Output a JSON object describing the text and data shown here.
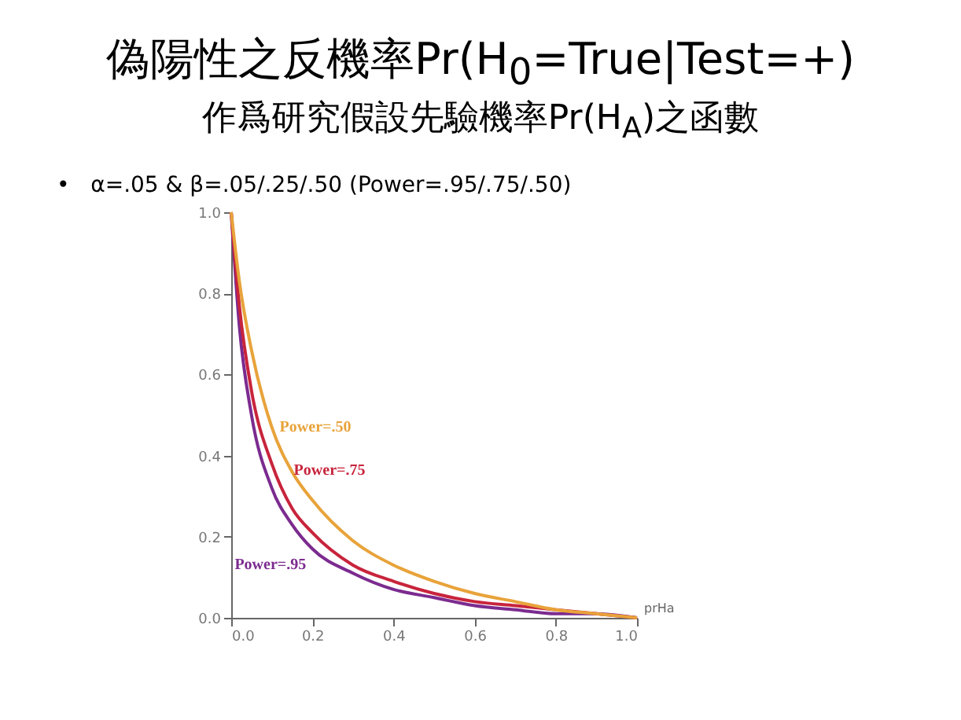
{
  "chart_data": {
    "type": "line",
    "title": "偽陽性之反機率Pr(H$_{0}$=True|Test=+)",
    "subtitle": "作爲研究假設先驗機率Pr(H$_{A}$)之函數",
    "annotations": [
      "•   α=.05 & β=.05/.25/.50 (Power=.95/.75/.50)"
    ],
    "xlabel": "prHa",
    "x": [
      0,
      0.02,
      0.05,
      0.1,
      0.15,
      0.2,
      0.3,
      0.4,
      0.5,
      0.6,
      0.7,
      0.8,
      0.9,
      1.0
    ],
    "series": [
      {
        "name": "Power=.95",
        "color": "#7b2b8f",
        "values": [
          1,
          0.72,
          0.5,
          0.32,
          0.23,
          0.17,
          0.11,
          0.07,
          0.05,
          0.03,
          0.02,
          0.01,
          0.01,
          0
        ]
      },
      {
        "name": "Power=.75",
        "color": "#c8243c",
        "values": [
          1,
          0.77,
          0.56,
          0.38,
          0.27,
          0.21,
          0.13,
          0.09,
          0.06,
          0.04,
          0.03,
          0.02,
          0.01,
          0
        ]
      },
      {
        "name": "Power=.50",
        "color": "#e8a33a",
        "values": [
          1,
          0.83,
          0.66,
          0.47,
          0.36,
          0.29,
          0.19,
          0.13,
          0.09,
          0.06,
          0.04,
          0.02,
          0.01,
          0
        ]
      }
    ],
    "xlim": [
      0,
      1
    ],
    "ylim": [
      0,
      1
    ],
    "xticks": [
      {
        "value": 0,
        "label": "0.0"
      },
      {
        "value": 0.2,
        "label": "0.2"
      },
      {
        "value": 0.4,
        "label": "0.4"
      },
      {
        "value": 0.6,
        "label": "0.6"
      },
      {
        "value": 0.8,
        "label": "0.8"
      },
      {
        "value": 1,
        "label": "1.0"
      }
    ],
    "yticks": [
      {
        "value": 0,
        "label": "0.0"
      },
      {
        "value": 0.2,
        "label": "0.2"
      },
      {
        "value": 0.4,
        "label": "0.4"
      },
      {
        "value": 0.6,
        "label": "0.6"
      },
      {
        "value": 0.8,
        "label": "0.8"
      },
      {
        "value": 1,
        "label": "1.0"
      }
    ],
    "grid": false,
    "marker": "none",
    "line_style": "solid"
  }
}
